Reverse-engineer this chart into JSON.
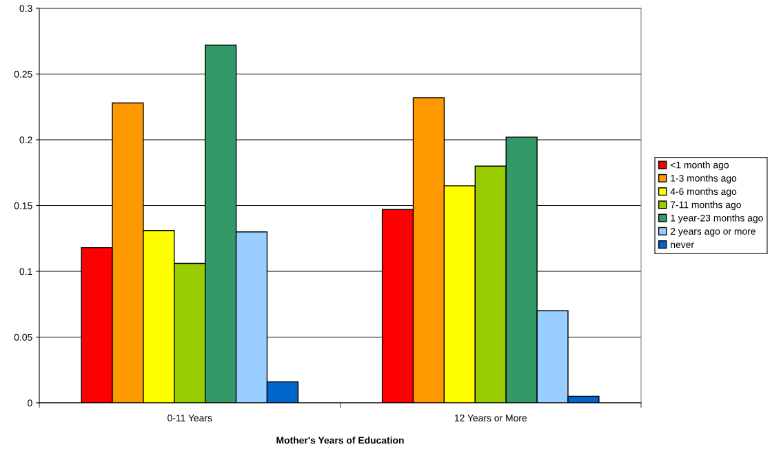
{
  "chart_data": {
    "type": "bar",
    "xlabel": "Mother's Years of Education",
    "categories": [
      "0-11 Years",
      "12 Years or More"
    ],
    "series": [
      {
        "name": "<1 month ago",
        "color": "#ff0000",
        "values": [
          0.118,
          0.147
        ]
      },
      {
        "name": "1-3 months ago",
        "color": "#ff9900",
        "values": [
          0.228,
          0.232
        ]
      },
      {
        "name": "4-6 months ago",
        "color": "#ffff00",
        "values": [
          0.131,
          0.165
        ]
      },
      {
        "name": "7-11 months ago",
        "color": "#99cc00",
        "values": [
          0.106,
          0.18
        ]
      },
      {
        "name": "1 year-23 months ago",
        "color": "#339966",
        "values": [
          0.272,
          0.202
        ]
      },
      {
        "name": "2 years ago or more",
        "color": "#99ccff",
        "values": [
          0.13,
          0.07
        ]
      },
      {
        "name": "never",
        "color": "#0066cc",
        "values": [
          0.016,
          0.005
        ]
      }
    ],
    "ylim": [
      0,
      0.3
    ],
    "yticks": [
      0,
      0.05,
      0.1,
      0.15,
      0.2,
      0.25,
      0.3
    ],
    "grid": "y",
    "legend": "right"
  }
}
